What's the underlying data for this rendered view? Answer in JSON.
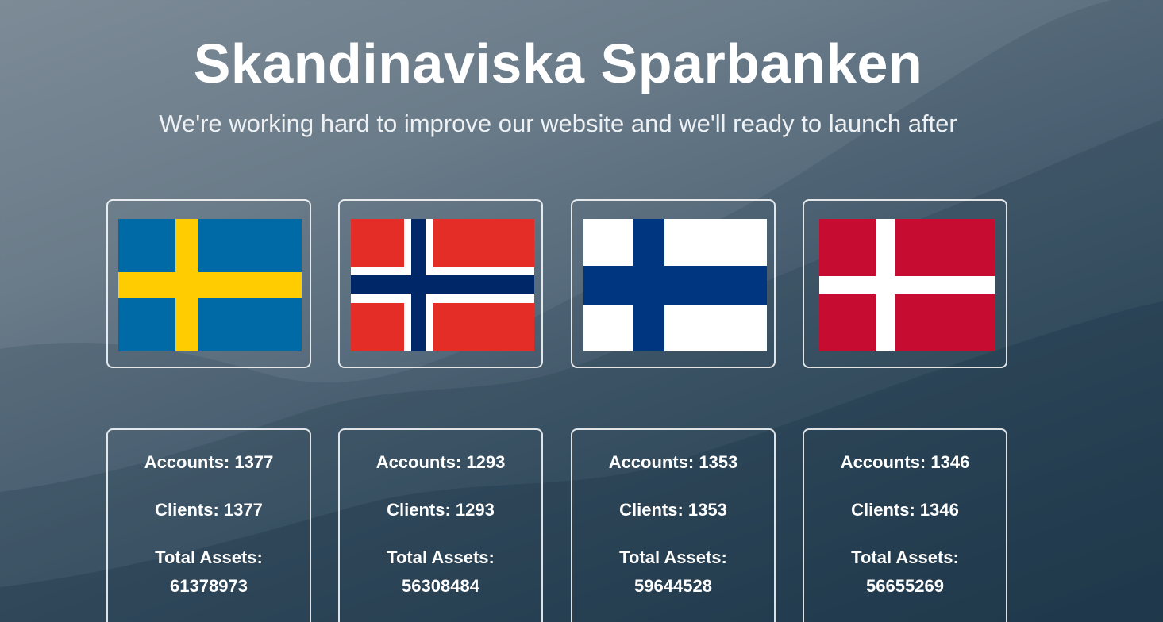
{
  "header": {
    "title": "Skandinaviska Sparbanken",
    "subtitle": "We're working hard to improve our website and we'll ready to launch after"
  },
  "flags": [
    {
      "country": "Sweden",
      "icon": "sweden-flag-icon",
      "colors": {
        "field": "#006aa7",
        "cross": "#fecc00"
      }
    },
    {
      "country": "Norway",
      "icon": "norway-flag-icon",
      "colors": {
        "field": "#e32d26",
        "border": "#ffffff",
        "cross": "#002868"
      }
    },
    {
      "country": "Finland",
      "icon": "finland-flag-icon",
      "colors": {
        "field": "#ffffff",
        "cross": "#003580"
      }
    },
    {
      "country": "Denmark",
      "icon": "denmark-flag-icon",
      "colors": {
        "field": "#c60c30",
        "cross": "#ffffff"
      }
    }
  ],
  "stats": [
    {
      "accounts_label": "Accounts: 1377",
      "clients_label": "Clients: 1377",
      "assets_label": "Total Assets:",
      "assets_value": "61378973"
    },
    {
      "accounts_label": "Accounts: 1293",
      "clients_label": "Clients: 1293",
      "assets_label": "Total Assets:",
      "assets_value": "56308484"
    },
    {
      "accounts_label": "Accounts: 1353",
      "clients_label": "Clients: 1353",
      "assets_label": "Total Assets:",
      "assets_value": "59644528"
    },
    {
      "accounts_label": "Accounts: 1346",
      "clients_label": "Clients: 1346",
      "assets_label": "Total Assets:",
      "assets_value": "56655269"
    }
  ]
}
